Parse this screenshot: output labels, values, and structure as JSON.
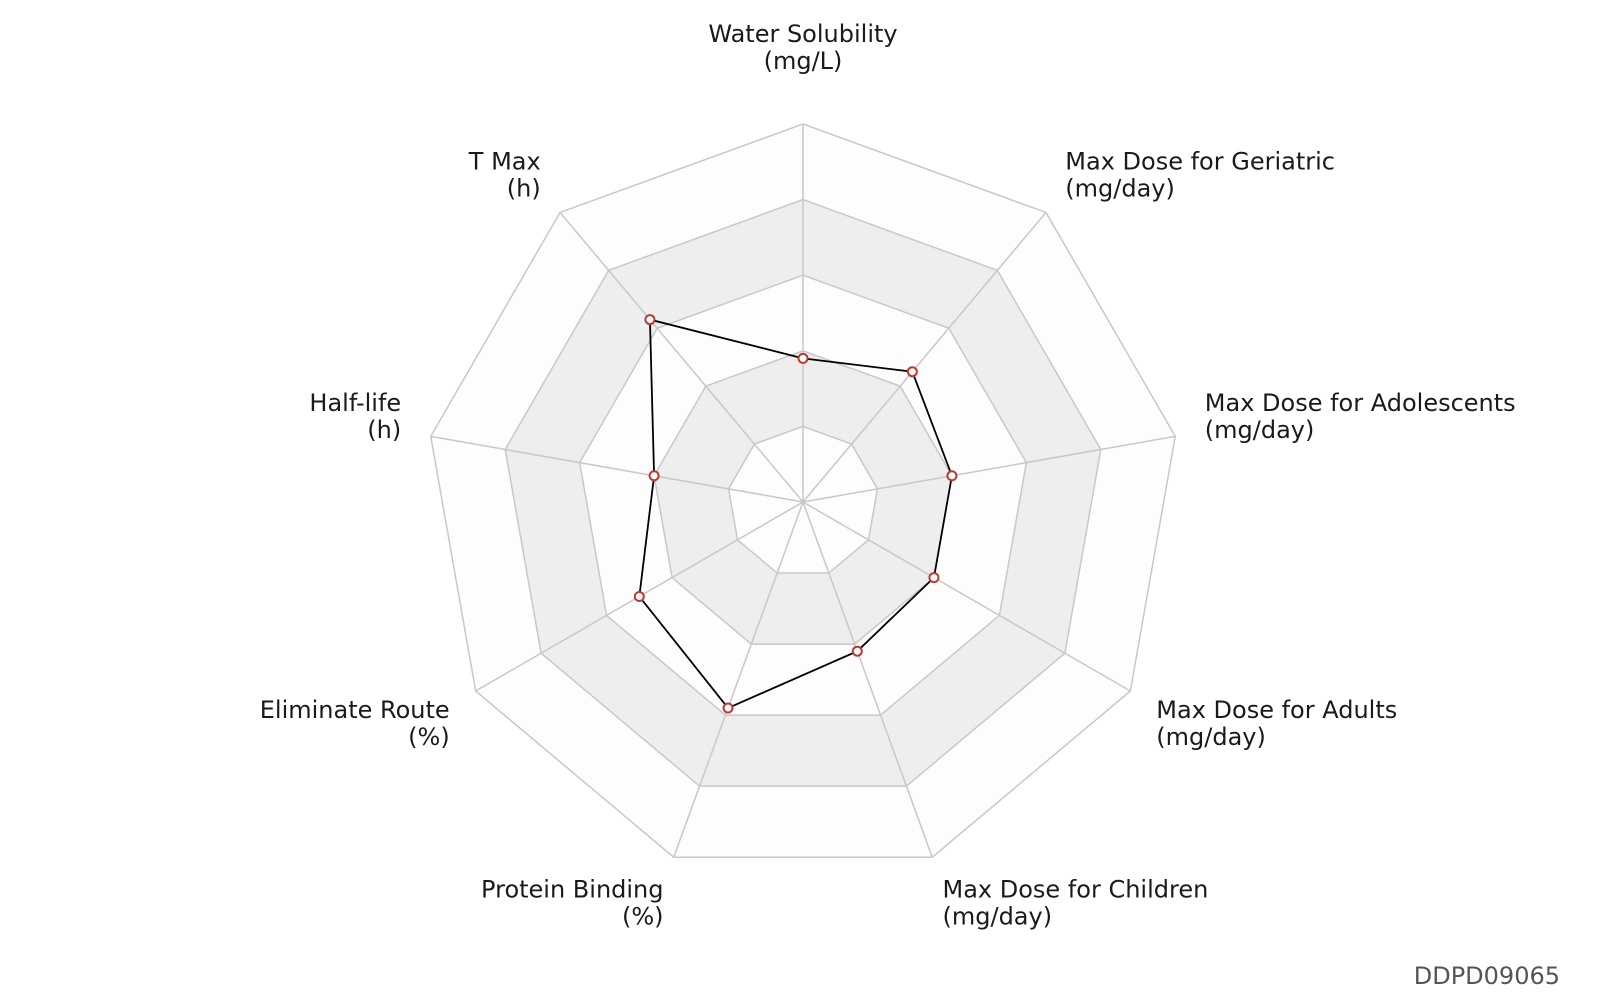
{
  "chart_data": {
    "type": "radar",
    "axes": [
      {
        "name": "Water Solubility",
        "unit": "(mg/L)"
      },
      {
        "name": "Max Dose for Geriatric",
        "unit": "(mg/day)"
      },
      {
        "name": "Max Dose for Adolescents",
        "unit": "(mg/day)"
      },
      {
        "name": "Max Dose for Adults",
        "unit": "(mg/day)"
      },
      {
        "name": "Max Dose for Children",
        "unit": "(mg/day)"
      },
      {
        "name": "Protein Binding",
        "unit": "(%)"
      },
      {
        "name": "Eliminate Route",
        "unit": "(%)"
      },
      {
        "name": "Half-life",
        "unit": "(h)"
      },
      {
        "name": "T Max",
        "unit": "(h)"
      }
    ],
    "values": [
      0.38,
      0.45,
      0.4,
      0.4,
      0.42,
      0.58,
      0.5,
      0.4,
      0.63
    ],
    "rings": 5,
    "range": [
      0,
      1
    ],
    "colors": {
      "band_light": "#fdfdfd",
      "band_shaded": "#eeeeee",
      "grid": "#c8c8c8",
      "series_line": "#000000",
      "marker_edge": "#c0392b",
      "marker_fill": "#ffffff"
    }
  },
  "footer": {
    "id": "DDPD09065"
  }
}
